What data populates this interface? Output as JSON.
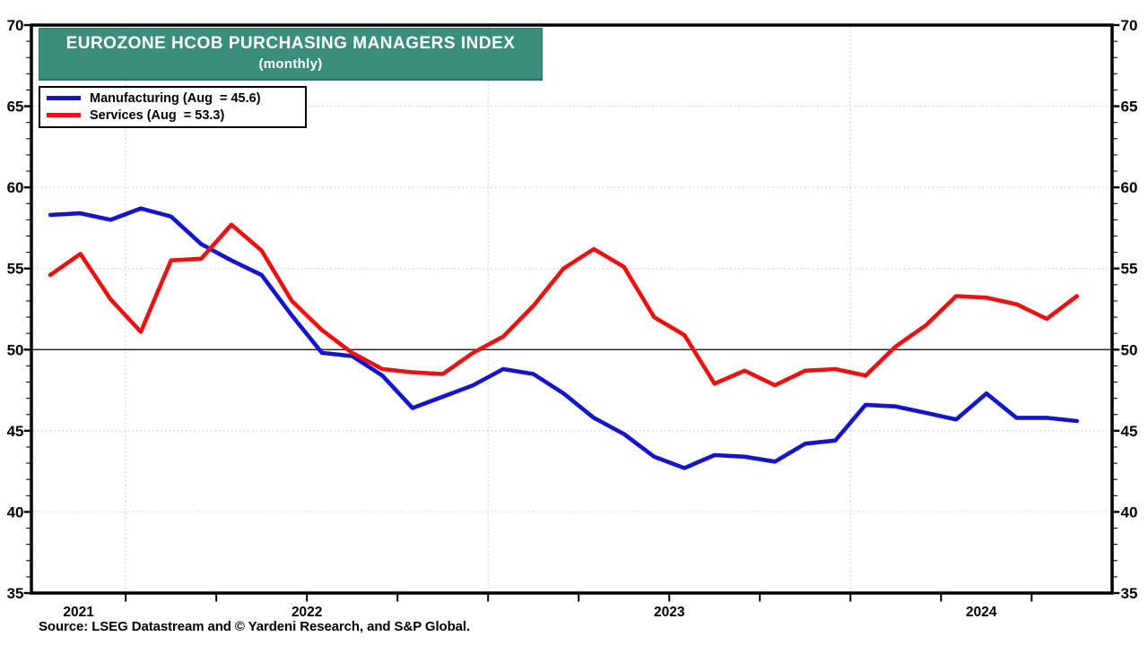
{
  "title": {
    "line1": "EUROZONE HCOB PURCHASING MANAGERS INDEX",
    "line2": "(monthly)"
  },
  "legend": {
    "items": [
      {
        "label": "Manufacturing (Aug  = 45.6)",
        "series": 0
      },
      {
        "label": "Services (Aug  = 53.3)",
        "series": 1
      }
    ]
  },
  "source_note": "Source: LSEG Datastream and © Yardeni Research, and S&P Global.",
  "colors": {
    "manufacturing": "#1414ce",
    "services": "#eb1111",
    "title_bar": "#3b8d7e",
    "grid": "#c7c7c7",
    "axis": "#000000"
  },
  "chart_data": {
    "type": "line",
    "title": "EUROZONE HCOB PURCHASING MANAGERS INDEX (monthly)",
    "x": [
      "Oct 2021",
      "Nov 2021",
      "Dec 2021",
      "Jan 2022",
      "Feb 2022",
      "Mar 2022",
      "Apr 2022",
      "May 2022",
      "Jun 2022",
      "Jul 2022",
      "Aug 2022",
      "Sep 2022",
      "Oct 2022",
      "Nov 2022",
      "Dec 2022",
      "Jan 2023",
      "Feb 2023",
      "Mar 2023",
      "Apr 2023",
      "May 2023",
      "Jun 2023",
      "Jul 2023",
      "Aug 2023",
      "Sep 2023",
      "Oct 2023",
      "Nov 2023",
      "Dec 2023",
      "Jan 2024",
      "Feb 2024",
      "Mar 2024",
      "Apr 2024",
      "May 2024",
      "Jun 2024",
      "Jul 2024",
      "Aug 2024"
    ],
    "series": [
      {
        "name": "Manufacturing",
        "color": "#1414ce",
        "values": [
          58.3,
          58.4,
          58.0,
          58.7,
          58.2,
          56.5,
          55.5,
          54.6,
          52.1,
          49.8,
          49.6,
          48.4,
          46.4,
          47.1,
          47.8,
          48.8,
          48.5,
          47.3,
          45.8,
          44.8,
          43.4,
          42.7,
          43.5,
          43.4,
          43.1,
          44.2,
          44.4,
          46.6,
          46.5,
          46.1,
          45.7,
          47.3,
          45.8,
          45.8,
          45.6
        ]
      },
      {
        "name": "Services",
        "color": "#eb1111",
        "values": [
          54.6,
          55.9,
          53.1,
          51.1,
          55.5,
          55.6,
          57.7,
          56.1,
          53.0,
          51.2,
          49.8,
          48.8,
          48.6,
          48.5,
          49.8,
          50.8,
          52.7,
          55.0,
          56.2,
          55.1,
          52.0,
          50.9,
          47.9,
          48.7,
          47.8,
          48.7,
          48.8,
          48.4,
          50.2,
          51.5,
          53.3,
          53.2,
          52.8,
          51.9,
          53.3
        ]
      }
    ],
    "ylim": [
      35,
      70
    ],
    "y_major_ticks": [
      35,
      40,
      45,
      50,
      55,
      60,
      65,
      70
    ],
    "y_minor_step": 1,
    "reference_line": 50,
    "x_axis": {
      "year_labels": [
        "2021",
        "2022",
        "2023",
        "2024"
      ],
      "year_start_indices": [
        3,
        15,
        27
      ],
      "quarter_tick_interval_months": 3
    },
    "grid": "dotted horizontal at 5-unit majors (solid black at 50), dotted vertical at year starts",
    "legend_position": "top-left",
    "y_axis_sides": "both"
  }
}
